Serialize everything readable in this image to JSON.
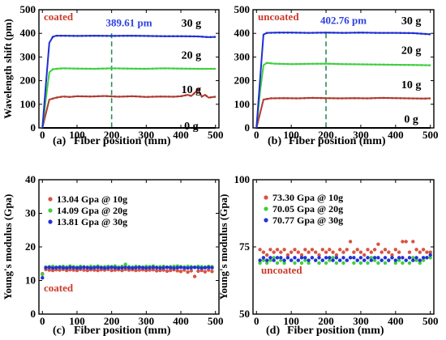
{
  "colors": {
    "axis": "#000000",
    "red": "#b03a2e",
    "green": "#3fcf3f",
    "blue": "#1f2fd0",
    "black_line": "#000000",
    "dash": "#2e8b57",
    "legend_red": "#cc3a2a",
    "legend_green": "#4fd04f",
    "legend_blue": "#2a3fe0",
    "marker_red": "#d65540",
    "marker_green": "#3fcf3f",
    "marker_blue": "#2530d8",
    "tag_red": "#cc3a2a",
    "peak_blue": "#2a3fe0"
  },
  "chart_data": [
    {
      "id": "a",
      "type": "line",
      "panel_label": "(a)",
      "xlabel": "Fiber position (mm)",
      "ylabel": "Wavelength shift (pm)",
      "xlim": [
        -10,
        510
      ],
      "ylim": [
        0,
        500
      ],
      "xticks": [
        0,
        100,
        200,
        300,
        400,
        500
      ],
      "yticks": [
        0,
        100,
        200,
        300,
        400,
        500
      ],
      "annotation": "coated",
      "dashed_x": 200,
      "peak_label": "389.61 pm",
      "series": [
        {
          "name": "0 g",
          "color_key": "black_line",
          "plateau": 0,
          "rise_end": 0,
          "noise": []
        },
        {
          "name": "10 g",
          "color_key": "red",
          "plateau": 130,
          "rise_end": 20,
          "x": [
            0,
            10,
            20,
            40,
            60,
            80,
            100,
            140,
            180,
            220,
            260,
            300,
            340,
            380,
            400,
            420,
            430,
            440,
            450,
            460,
            470,
            480,
            490,
            500
          ],
          "y": [
            0,
            60,
            120,
            128,
            133,
            131,
            134,
            133,
            135,
            132,
            134,
            131,
            133,
            132,
            134,
            140,
            135,
            148,
            165,
            132,
            140,
            128,
            130,
            132
          ]
        },
        {
          "name": "20 g",
          "color_key": "green",
          "plateau": 250,
          "rise_end": 25,
          "x": [
            0,
            10,
            20,
            30,
            40,
            60,
            100,
            150,
            200,
            250,
            300,
            350,
            400,
            450,
            500
          ],
          "y": [
            0,
            120,
            235,
            248,
            250,
            252,
            251,
            250,
            252,
            251,
            250,
            252,
            251,
            250,
            250
          ]
        },
        {
          "name": "30 g",
          "color_key": "blue",
          "plateau": 390,
          "rise_end": 30,
          "x": [
            0,
            10,
            20,
            30,
            40,
            60,
            100,
            150,
            200,
            250,
            300,
            350,
            400,
            450,
            480,
            500
          ],
          "y": [
            0,
            180,
            360,
            385,
            390,
            390,
            389,
            390,
            389,
            390,
            389,
            388,
            388,
            387,
            384,
            385
          ]
        }
      ],
      "series_label_x": [
        430,
        430,
        430,
        430
      ]
    },
    {
      "id": "b",
      "type": "line",
      "panel_label": "(b)",
      "xlabel": "Fiber position (mm)",
      "ylabel": "",
      "xlim": [
        -10,
        510
      ],
      "ylim": [
        0,
        500
      ],
      "xticks": [
        0,
        100,
        200,
        300,
        400,
        500
      ],
      "yticks": [
        0,
        100,
        200,
        300,
        400,
        500
      ],
      "annotation": "uncoated",
      "dashed_x": 200,
      "peak_label": "402.76 pm",
      "series": [
        {
          "name": "0 g",
          "color_key": "black_line",
          "x": [
            0,
            500
          ],
          "y": [
            0,
            0
          ]
        },
        {
          "name": "10 g",
          "color_key": "red",
          "x": [
            0,
            10,
            20,
            40,
            80,
            120,
            160,
            200,
            240,
            280,
            320,
            360,
            400,
            440,
            480,
            500
          ],
          "y": [
            0,
            60,
            120,
            125,
            126,
            125,
            127,
            126,
            125,
            126,
            125,
            127,
            126,
            125,
            124,
            125
          ]
        },
        {
          "name": "20 g",
          "color_key": "green",
          "x": [
            0,
            10,
            20,
            30,
            50,
            100,
            150,
            200,
            250,
            300,
            350,
            400,
            450,
            500
          ],
          "y": [
            0,
            150,
            265,
            275,
            272,
            270,
            271,
            272,
            270,
            269,
            268,
            267,
            266,
            265
          ]
        },
        {
          "name": "30 g",
          "color_key": "blue",
          "x": [
            0,
            10,
            20,
            30,
            60,
            100,
            150,
            200,
            250,
            300,
            350,
            400,
            450,
            500
          ],
          "y": [
            0,
            200,
            395,
            402,
            403,
            403,
            402,
            403,
            402,
            403,
            402,
            402,
            401,
            396
          ]
        }
      ],
      "series_label_x": [
        445,
        445,
        445,
        445
      ]
    },
    {
      "id": "c",
      "type": "scatter",
      "panel_label": "(c)",
      "xlabel": "Fiber position (mm)",
      "ylabel": "Young's modulus (Gpa)",
      "xlim": [
        -10,
        510
      ],
      "ylim": [
        0,
        40
      ],
      "xticks": [
        0,
        100,
        200,
        300,
        400,
        500
      ],
      "yticks": [
        0,
        10,
        20,
        30,
        40
      ],
      "annotation": "coated",
      "legend": [
        {
          "label": "13.04 Gpa @ 10g",
          "color_key": "marker_red"
        },
        {
          "label": "14.09 Gpa @ 20g",
          "color_key": "marker_green"
        },
        {
          "label": "13.81 Gpa @ 30g",
          "color_key": "marker_blue"
        }
      ],
      "series": [
        {
          "name": "10g",
          "color_key": "marker_red",
          "base": 13.2,
          "start_y": 12.0,
          "y": [
            12.0,
            13.3,
            13.1,
            13.0,
            13.2,
            13.1,
            13.3,
            13.0,
            13.2,
            13.1,
            13.0,
            13.3,
            13.1,
            13.0,
            13.2,
            13.1,
            13.0,
            13.2,
            13.1,
            13.3,
            13.0,
            13.1,
            13.2,
            13.0,
            13.3,
            13.1,
            13.2,
            13.0,
            13.1,
            13.2,
            13.0,
            13.1,
            13.2,
            12.9,
            13.0,
            13.1,
            12.8,
            13.0,
            13.2,
            12.9,
            12.7,
            13.1,
            12.5,
            12.9,
            11.2,
            12.8,
            13.0,
            12.6,
            13.1,
            12.7
          ]
        },
        {
          "name": "20g",
          "color_key": "marker_green",
          "base": 14.1,
          "start_y": 11.8,
          "y": [
            11.8,
            14.0,
            14.1,
            14.2,
            14.0,
            14.1,
            14.2,
            14.0,
            14.3,
            14.1,
            14.0,
            14.2,
            14.1,
            14.0,
            14.2,
            14.1,
            14.3,
            14.0,
            14.1,
            14.2,
            14.1,
            14.3,
            14.0,
            14.2,
            14.8,
            14.1,
            14.0,
            14.2,
            14.1,
            14.0,
            14.2,
            14.1,
            14.3,
            14.0,
            14.1,
            14.2,
            14.0,
            14.1,
            14.2,
            14.3,
            14.1,
            14.0,
            14.2,
            14.1,
            14.0,
            14.2,
            14.1,
            14.0,
            14.2,
            14.1
          ]
        },
        {
          "name": "30g",
          "color_key": "marker_blue",
          "base": 13.8,
          "start_y": 10.8,
          "y": [
            10.8,
            13.8,
            13.9,
            13.7,
            13.8,
            13.9,
            13.8,
            13.7,
            13.9,
            13.8,
            13.7,
            13.8,
            13.9,
            13.8,
            13.7,
            13.8,
            13.9,
            13.8,
            13.7,
            13.8,
            13.9,
            13.8,
            13.7,
            13.8,
            13.9,
            13.8,
            13.7,
            13.8,
            13.9,
            13.8,
            13.7,
            13.8,
            13.9,
            13.8,
            13.7,
            13.8,
            13.9,
            13.8,
            13.7,
            13.8,
            13.9,
            13.8,
            13.7,
            13.8,
            13.9,
            13.8,
            13.7,
            13.8,
            13.9,
            13.8
          ]
        }
      ],
      "x_start": 0,
      "x_step": 10
    },
    {
      "id": "d",
      "type": "scatter",
      "panel_label": "(d)",
      "xlabel": "Fiber position (mm)",
      "ylabel": "Young's modulus (Gpa)",
      "xlim": [
        -10,
        510
      ],
      "ylim": [
        50,
        100
      ],
      "xticks": [
        0,
        100,
        200,
        300,
        400,
        500
      ],
      "yticks": [
        50,
        75,
        100
      ],
      "annotation": "uncoated",
      "legend": [
        {
          "label": "73.30 Gpa @ 10g",
          "color_key": "marker_red"
        },
        {
          "label": "70.05 Gpa @ 20g",
          "color_key": "marker_green"
        },
        {
          "label": "70.77 Gpa @ 30g",
          "color_key": "marker_blue"
        }
      ],
      "series": [
        {
          "name": "10g",
          "color_key": "marker_red",
          "y": [
            74,
            73,
            72,
            74,
            73,
            74,
            73,
            74,
            72,
            73,
            74,
            73,
            72,
            74,
            73,
            74,
            73,
            72,
            74,
            73,
            74,
            73,
            72,
            74,
            73,
            74,
            77,
            73,
            74,
            73,
            72,
            74,
            73,
            74,
            76,
            73,
            74,
            73,
            72,
            74,
            73,
            77,
            77,
            73,
            77,
            74,
            73,
            74,
            73,
            73
          ]
        },
        {
          "name": "20g",
          "color_key": "marker_green",
          "y": [
            69,
            70,
            69,
            70,
            71,
            69,
            70,
            69,
            71,
            70,
            69,
            70,
            69,
            70,
            69,
            71,
            70,
            69,
            70,
            69,
            70,
            71,
            69,
            70,
            69,
            70,
            71,
            69,
            70,
            69,
            70,
            69,
            71,
            70,
            69,
            70,
            69,
            70,
            71,
            69,
            70,
            69,
            70,
            69,
            71,
            70,
            69,
            70,
            71,
            71
          ]
        },
        {
          "name": "30g",
          "color_key": "marker_blue",
          "y": [
            70,
            71,
            70,
            71,
            70,
            71,
            71,
            70,
            71,
            70,
            71,
            70,
            71,
            71,
            70,
            71,
            70,
            71,
            70,
            71,
            71,
            70,
            71,
            70,
            71,
            70,
            71,
            71,
            70,
            71,
            70,
            71,
            70,
            71,
            71,
            70,
            71,
            70,
            71,
            70,
            71,
            71,
            70,
            71,
            70,
            71,
            70,
            71,
            71,
            72
          ]
        }
      ],
      "x_start": 10,
      "x_step": 10
    }
  ]
}
